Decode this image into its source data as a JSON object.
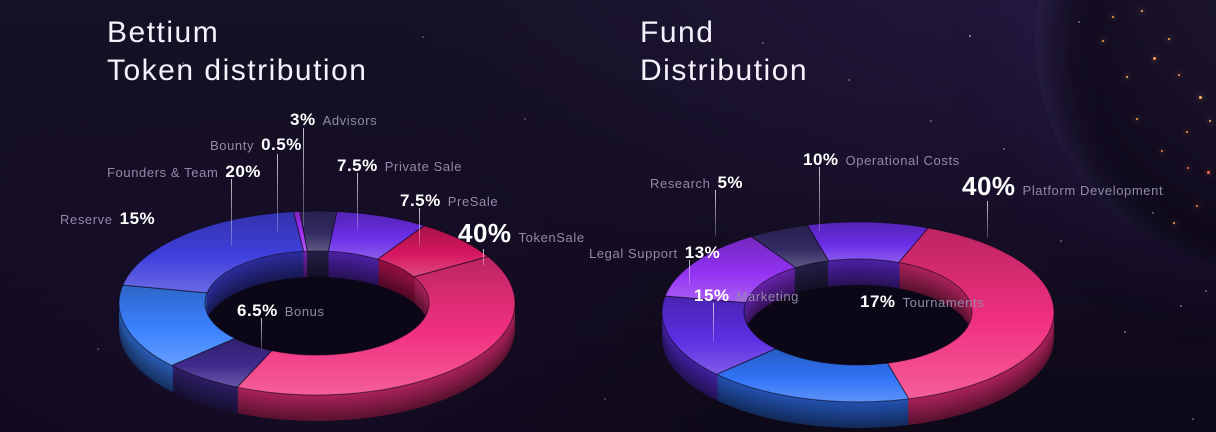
{
  "page": {
    "theme": "dark-space",
    "background_color": "#120c1f",
    "accent_colors": {
      "pink": "#f1307f",
      "blue": "#3b82ff",
      "purple": "#6b2ee8",
      "violet": "#a12ff5",
      "indigo": "#4040dd",
      "dark_navy": "#332a63"
    }
  },
  "left_chart": {
    "title_line1": "Bettium",
    "title_line2": "Token distribution"
  },
  "right_chart": {
    "title_line1": "Fund",
    "title_line2": "Distribution"
  },
  "chart_data": [
    {
      "type": "pie",
      "variant": "3d-donut",
      "title": "Bettium Token distribution",
      "unit": "%",
      "legend_position": "callout-labels-around",
      "slices": [
        {
          "label": "Advisors",
          "value": 3,
          "color": "#332a63",
          "display": "3% Advisors"
        },
        {
          "label": "Private Sale",
          "value": 7.5,
          "color": "#6b2ee8",
          "display": "7.5% Private Sale"
        },
        {
          "label": "PreSale",
          "value": 7.5,
          "color": "#d6175f",
          "display": "7.5% PreSale"
        },
        {
          "label": "TokenSale",
          "value": 40,
          "color": "#f1307f",
          "display": "40% TokenSale"
        },
        {
          "label": "Bonus",
          "value": 6.5,
          "color": "#3e2a8c",
          "display": "6.5% Bonus"
        },
        {
          "label": "Reserve",
          "value": 15,
          "color": "#3b82ff",
          "display": "Reserve 15%"
        },
        {
          "label": "Founders & Team",
          "value": 20,
          "color": "#4040dd",
          "display": "Founders & Team 20%"
        },
        {
          "label": "Bounty",
          "value": 0.5,
          "color": "#a12ff5",
          "display": "Bounty 0.5%"
        }
      ]
    },
    {
      "type": "pie",
      "variant": "3d-donut",
      "title": "Fund Distribution",
      "unit": "%",
      "legend_position": "callout-labels-around",
      "slices": [
        {
          "label": "Operational Costs",
          "value": 10,
          "color": "#6b2ee8",
          "display": "10% Operational Costs"
        },
        {
          "label": "Platform Development",
          "value": 40,
          "color": "#f1307f",
          "display": "40% Platform Development"
        },
        {
          "label": "Tournaments",
          "value": 17,
          "color": "#3173f7",
          "display": "17% Tournaments"
        },
        {
          "label": "Marketing",
          "value": 15,
          "color": "#5c2ee2",
          "display": "15% Marketing"
        },
        {
          "label": "Legal Support",
          "value": 13,
          "color": "#9232f2",
          "display": "Legal Support 13%"
        },
        {
          "label": "Research",
          "value": 5,
          "color": "#332a63",
          "display": "Research 5%"
        }
      ]
    }
  ]
}
